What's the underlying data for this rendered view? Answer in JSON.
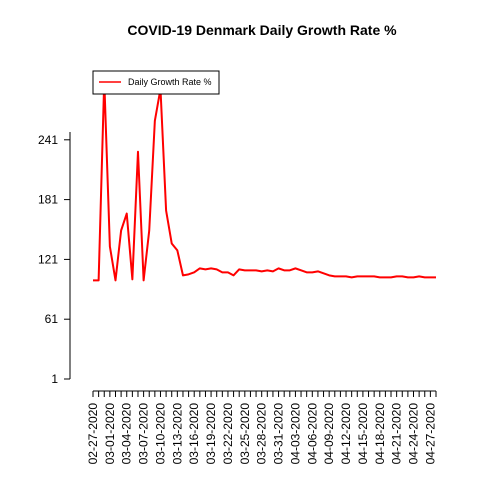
{
  "chart_data": {
    "type": "line",
    "title": "COVID-19 Denmark Daily Growth Rate %",
    "xlabel": "",
    "ylabel": "",
    "legend": {
      "position": "top-left",
      "entries": [
        "Daily Growth Rate %"
      ]
    },
    "grid": false,
    "ylim": [
      1,
      301
    ],
    "yticks": [
      1,
      61,
      121,
      181,
      241
    ],
    "xtick_labels": [
      "02-27-2020",
      "03-01-2020",
      "03-04-2020",
      "03-07-2020",
      "03-10-2020",
      "03-13-2020",
      "03-16-2020",
      "03-19-2020",
      "03-22-2020",
      "03-25-2020",
      "03-28-2020",
      "03-31-2020",
      "04-03-2020",
      "04-06-2020",
      "04-09-2020",
      "04-12-2020",
      "04-15-2020",
      "04-18-2020",
      "04-21-2020",
      "04-24-2020",
      "04-27-2020"
    ],
    "x": [
      "02-27-2020",
      "02-28-2020",
      "02-29-2020",
      "03-01-2020",
      "03-02-2020",
      "03-03-2020",
      "03-04-2020",
      "03-05-2020",
      "03-06-2020",
      "03-07-2020",
      "03-08-2020",
      "03-09-2020",
      "03-10-2020",
      "03-11-2020",
      "03-12-2020",
      "03-13-2020",
      "03-14-2020",
      "03-15-2020",
      "03-16-2020",
      "03-17-2020",
      "03-18-2020",
      "03-19-2020",
      "03-20-2020",
      "03-21-2020",
      "03-22-2020",
      "03-23-2020",
      "03-24-2020",
      "03-25-2020",
      "03-26-2020",
      "03-27-2020",
      "03-28-2020",
      "03-29-2020",
      "03-30-2020",
      "03-31-2020",
      "04-01-2020",
      "04-02-2020",
      "04-03-2020",
      "04-04-2020",
      "04-05-2020",
      "04-06-2020",
      "04-07-2020",
      "04-08-2020",
      "04-09-2020",
      "04-10-2020",
      "04-11-2020",
      "04-12-2020",
      "04-13-2020",
      "04-14-2020",
      "04-15-2020",
      "04-16-2020",
      "04-17-2020",
      "04-18-2020",
      "04-19-2020",
      "04-20-2020",
      "04-21-2020",
      "04-22-2020",
      "04-23-2020",
      "04-24-2020",
      "04-25-2020",
      "04-26-2020",
      "04-27-2020",
      "04-28-2020"
    ],
    "series": [
      {
        "name": "Daily Growth Rate %",
        "color": "#ff0000",
        "values": [
          100,
          100,
          301,
          134,
          100,
          150,
          167,
          101,
          229,
          100,
          150,
          260,
          292,
          170,
          137,
          130,
          105,
          106,
          108,
          112,
          111,
          112,
          111,
          108,
          108,
          105,
          111,
          110,
          110,
          110,
          109,
          110,
          109,
          112,
          110,
          110,
          112,
          110,
          108,
          108,
          109,
          107,
          105,
          104,
          104,
          104,
          103,
          104,
          104,
          104,
          104,
          103,
          103,
          103,
          104,
          104,
          103,
          103,
          104,
          103,
          103,
          103
        ]
      }
    ]
  }
}
